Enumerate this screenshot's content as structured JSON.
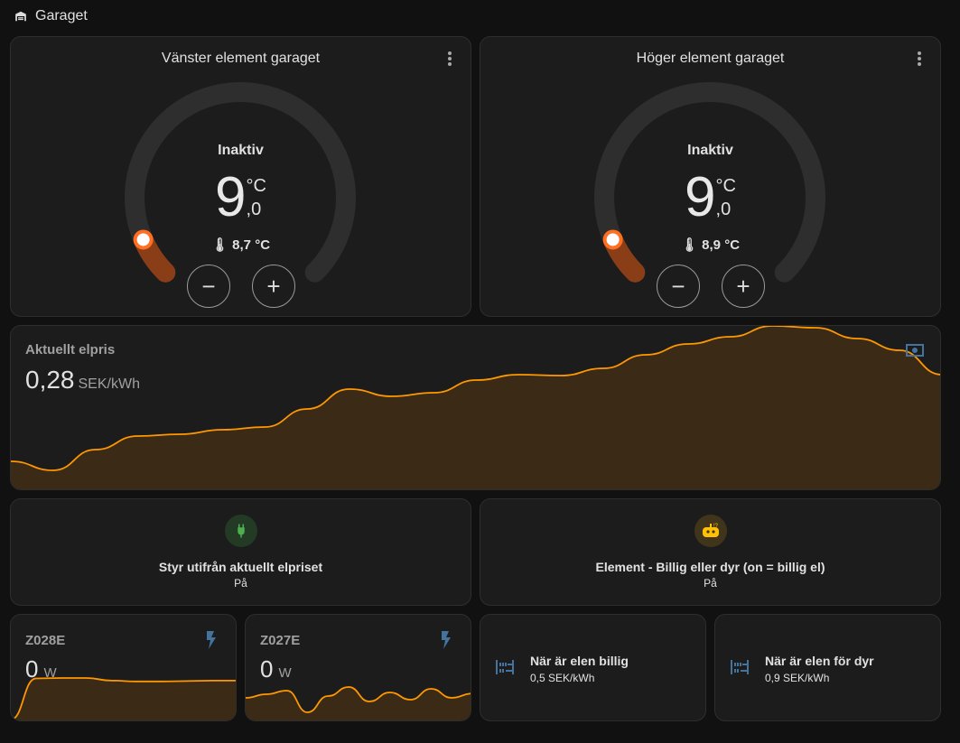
{
  "header": {
    "title": "Garaget",
    "icon": "garage-icon"
  },
  "thermostats": [
    {
      "title": "Vänster element garaget",
      "state": "Inaktiv",
      "target_int": "9",
      "target_dec": ",0",
      "unit": "°C",
      "current": "8,7 °C",
      "minus": "−",
      "plus": "+",
      "level": 0.08
    },
    {
      "title": "Höger element garaget",
      "state": "Inaktiv",
      "target_int": "9",
      "target_dec": ",0",
      "unit": "°C",
      "current": "8,9 °C",
      "minus": "−",
      "plus": "+",
      "level": 0.08
    }
  ],
  "price": {
    "title": "Aktuellt elpris",
    "value": "0,28",
    "unit": "SEK/kWh",
    "icon": "cash-icon"
  },
  "tiles": [
    {
      "name": "Styr utifrån aktuellt elpriset",
      "state": "På",
      "icon": "power-plug-icon",
      "color": "#4caf50"
    },
    {
      "name": "Element - Billig eller dyr (on = billig el)",
      "state": "På",
      "icon": "robot-icon",
      "color": "#ffc107"
    }
  ],
  "sensors": [
    {
      "name": "Z028E",
      "value": "0",
      "unit": "W",
      "icon": "flash-icon"
    },
    {
      "name": "Z027E",
      "value": "0",
      "unit": "W",
      "icon": "flash-icon"
    }
  ],
  "entities": [
    {
      "name": "När är elen billig",
      "state": "0,5 SEK/kWh",
      "icon": "counter-icon"
    },
    {
      "name": "När är elen för dyr",
      "state": "0,9 SEK/kWh",
      "icon": "counter-icon"
    }
  ],
  "chart_data": [
    {
      "type": "area",
      "series": [
        {
          "values": [
            0.34,
            0.24,
            0.47,
            0.62,
            0.64,
            0.69,
            0.72,
            0.92,
            1.14,
            1.06,
            1.1,
            1.24,
            1.3,
            1.29,
            1.37,
            1.52,
            1.64,
            1.72,
            1.84,
            1.82,
            1.7,
            1.57,
            1.3
          ]
        }
      ],
      "color": "#ff9800"
    },
    {
      "type": "area",
      "series": [
        {
          "values": [
            0,
            0.95,
            0.96,
            0.96,
            0.9,
            0.88,
            0.88,
            0.89,
            0.9,
            0.9
          ]
        }
      ],
      "color": "#ff9800"
    },
    {
      "type": "area",
      "series": [
        {
          "values": [
            0.6,
            0.7,
            0.8,
            0.2,
            0.65,
            0.9,
            0.5,
            0.75,
            0.55,
            0.85,
            0.6,
            0.72
          ]
        }
      ],
      "color": "#ff9800"
    }
  ]
}
